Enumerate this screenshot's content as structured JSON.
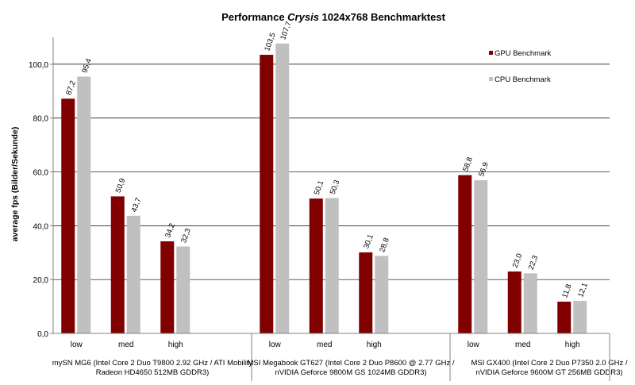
{
  "chart_data": {
    "type": "bar",
    "title_parts": [
      "Performance ",
      "Crysis",
      " 1024x768  Benchmarktest"
    ],
    "ylabel": "average fps (Bilder/Sekunde)",
    "xlabel": "",
    "ylim": [
      0,
      110
    ],
    "yticks": [
      "0,0",
      "20,0",
      "40,0",
      "60,0",
      "80,0",
      "100,0"
    ],
    "ytick_values": [
      0,
      20,
      40,
      60,
      80,
      100
    ],
    "grid": true,
    "legend_position": "top-right",
    "groups": [
      {
        "lines": [
          "mySN MG6 (Intel Core 2  Duo T9800 2.92 GHz / ATI Mobility",
          "Radeon HD4650 512MB GDDR3)"
        ],
        "categories": [
          "low",
          "med",
          "high"
        ]
      },
      {
        "lines": [
          "MSI Megabook GT627 (Intel Core 2 Duo P8600 @ 2.77 GHz /",
          "nVIDIA Geforce 9800M GS 1024MB GDDR3)"
        ],
        "categories": [
          "low",
          "med",
          "high"
        ]
      },
      {
        "lines": [
          "MSI GX400 (Intel Core 2  Duo P7350 2.0 GHz /",
          "nVIDIA Geforce 9600M GT 256MB GDDR3)"
        ],
        "categories": [
          "low",
          "med",
          "high"
        ]
      }
    ],
    "series": [
      {
        "name": "GPU Benchmark",
        "color": "#800000",
        "values": [
          87.2,
          50.9,
          34.2,
          103.5,
          50.1,
          30.1,
          58.8,
          23.0,
          11.8
        ],
        "labels": [
          "87,2",
          "50,9",
          "34,2",
          "103,5",
          "50,1",
          "30,1",
          "58,8",
          "23,0",
          "11,8"
        ]
      },
      {
        "name": "CPU Benchmark",
        "color": "#c0c0c0",
        "values": [
          95.4,
          43.7,
          32.3,
          107.7,
          50.3,
          28.8,
          56.9,
          22.3,
          12.1
        ],
        "labels": [
          "95,4",
          "43,7",
          "32,3",
          "107,7",
          "50,3",
          "28,8",
          "56,9",
          "22,3",
          "12,1"
        ]
      }
    ]
  }
}
